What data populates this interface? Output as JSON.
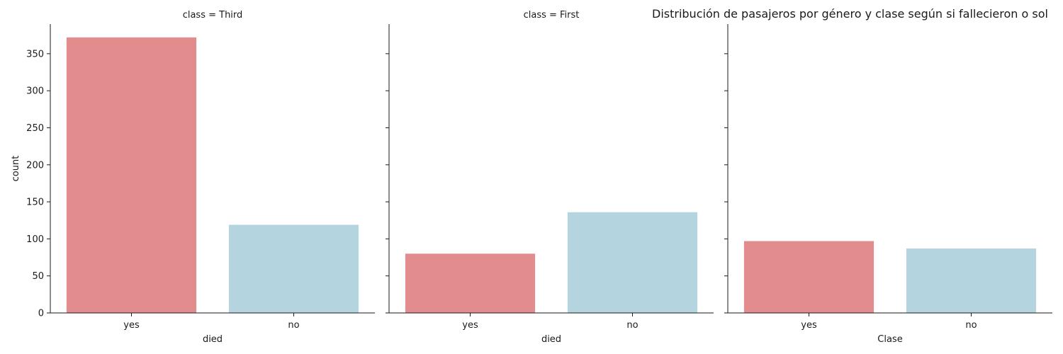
{
  "chart_data": {
    "type": "bar",
    "suptitle": "Distribución de pasajeros por género y clase según si fallecieron o sol",
    "ylabel": "count",
    "ylim": [
      0,
      390
    ],
    "yticks": [
      0,
      50,
      100,
      150,
      200,
      250,
      300,
      350
    ],
    "categories": [
      "yes",
      "no"
    ],
    "colors": [
      "#e28c8d",
      "#b4d5e0"
    ],
    "grid": false,
    "panels": [
      {
        "title": "class = Third",
        "xlabel": "died",
        "values": [
          372,
          119
        ]
      },
      {
        "title": "class = First",
        "xlabel": "died",
        "values": [
          80,
          136
        ]
      },
      {
        "title": "",
        "xlabel": "Clase",
        "values": [
          97,
          87
        ]
      }
    ]
  }
}
